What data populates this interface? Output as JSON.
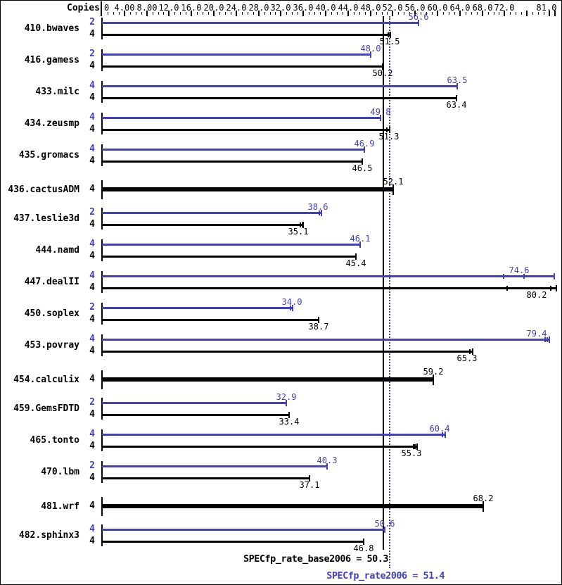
{
  "header": {
    "copies_label": "Copies"
  },
  "footer": {
    "base_score_text": "SPECfp_rate_base2006 = 50.3",
    "peak_score_text": "SPECfp_rate2006 = 51.4"
  },
  "colors": {
    "peak_blue": "#4040c0",
    "base_black": "#000000"
  },
  "chart_data": {
    "type": "bar",
    "orientation": "horizontal",
    "xlim": [
      0,
      81
    ],
    "grid": false,
    "axis_minor_step": 1,
    "axis_major_step": 4,
    "axis_labels": [
      {
        "value": 0,
        "text": "0"
      },
      {
        "value": 4,
        "text": "4.00"
      },
      {
        "value": 8,
        "text": "8.00"
      },
      {
        "value": 12,
        "text": "12.0"
      },
      {
        "value": 16,
        "text": "16.0"
      },
      {
        "value": 20,
        "text": "20.0"
      },
      {
        "value": 24,
        "text": "24.0"
      },
      {
        "value": 28,
        "text": "28.0"
      },
      {
        "value": 32,
        "text": "32.0"
      },
      {
        "value": 36,
        "text": "36.0"
      },
      {
        "value": 40,
        "text": "40.0"
      },
      {
        "value": 44,
        "text": "44.0"
      },
      {
        "value": 48,
        "text": "48.0"
      },
      {
        "value": 52,
        "text": "52.0"
      },
      {
        "value": 56,
        "text": "56.0"
      },
      {
        "value": 60,
        "text": "60.0"
      },
      {
        "value": 64,
        "text": "64.0"
      },
      {
        "value": 68,
        "text": "68.0"
      },
      {
        "value": 72,
        "text": "72.0"
      },
      {
        "value": 81,
        "text": "81.0"
      }
    ],
    "reference_lines": [
      {
        "name": "base_score",
        "value": 50.3,
        "style": "solid",
        "color": "#000000"
      },
      {
        "name": "peak_score",
        "value": 51.4,
        "style": "dotted",
        "color": "#4040c0"
      }
    ],
    "benchmarks": [
      {
        "name": "410.bwaves",
        "bars": [
          {
            "kind": "peak",
            "copies": 2,
            "value": 56.6
          },
          {
            "kind": "base",
            "copies": 4,
            "value": 51.5,
            "run_marks": [
              51.2
            ],
            "bar_end": 51.6
          }
        ]
      },
      {
        "name": "416.gamess",
        "bars": [
          {
            "kind": "peak",
            "copies": 2,
            "value": 48.0,
            "value_text": "48.0"
          },
          {
            "kind": "base",
            "copies": 4,
            "value": 50.2
          }
        ]
      },
      {
        "name": "433.milc",
        "bars": [
          {
            "kind": "peak",
            "copies": 4,
            "value": 63.5
          },
          {
            "kind": "base",
            "copies": 4,
            "value": 63.4
          }
        ]
      },
      {
        "name": "434.zeusmp",
        "bars": [
          {
            "kind": "peak",
            "copies": 4,
            "value": 49.8
          },
          {
            "kind": "base",
            "copies": 4,
            "value": 51.3,
            "run_marks": [
              51.0
            ],
            "bar_end": 51.4
          }
        ]
      },
      {
        "name": "435.gromacs",
        "bars": [
          {
            "kind": "peak",
            "copies": 4,
            "value": 46.9
          },
          {
            "kind": "base",
            "copies": 4,
            "value": 46.5
          }
        ]
      },
      {
        "name": "436.cactusADM",
        "bars": [
          {
            "kind": "base",
            "copies": 4,
            "value": 52.1,
            "thick": true
          }
        ]
      },
      {
        "name": "437.leslie3d",
        "bars": [
          {
            "kind": "peak",
            "copies": 2,
            "value": 38.6,
            "run_marks": [
              38.9
            ],
            "bar_end": 39.2
          },
          {
            "kind": "base",
            "copies": 4,
            "value": 35.1,
            "run_marks": [
              35.5,
              35.8
            ],
            "bar_end": 36.0
          }
        ]
      },
      {
        "name": "444.namd",
        "bars": [
          {
            "kind": "peak",
            "copies": 4,
            "value": 46.1
          },
          {
            "kind": "base",
            "copies": 4,
            "value": 45.4
          }
        ]
      },
      {
        "name": "447.dealII",
        "bars": [
          {
            "kind": "peak",
            "copies": 4,
            "value": 74.6,
            "run_marks": [
              71.8,
              75.5
            ],
            "bar_end": 80.9
          },
          {
            "kind": "base",
            "copies": 4,
            "value": 80.2,
            "run_marks": [
              72.4,
              80.2
            ],
            "bar_end": 81.3
          }
        ]
      },
      {
        "name": "450.soplex",
        "bars": [
          {
            "kind": "peak",
            "copies": 2,
            "value": 34.0,
            "value_text": "34.0",
            "run_marks": [
              33.7
            ],
            "bar_end": 34.1
          },
          {
            "kind": "base",
            "copies": 4,
            "value": 38.7
          }
        ]
      },
      {
        "name": "453.povray",
        "bars": [
          {
            "kind": "peak",
            "copies": 4,
            "value": 79.4,
            "run_marks": [
              79.3,
              79.65
            ],
            "bar_end": 80.0
          },
          {
            "kind": "base",
            "copies": 4,
            "value": 65.3,
            "run_marks": [
              65.8
            ],
            "bar_end": 66.3
          }
        ]
      },
      {
        "name": "454.calculix",
        "bars": [
          {
            "kind": "base",
            "copies": 4,
            "value": 59.2,
            "thick": true
          }
        ]
      },
      {
        "name": "459.GemsFDTD",
        "bars": [
          {
            "kind": "peak",
            "copies": 2,
            "value": 32.9
          },
          {
            "kind": "base",
            "copies": 4,
            "value": 33.4
          }
        ]
      },
      {
        "name": "465.tonto",
        "bars": [
          {
            "kind": "peak",
            "copies": 4,
            "value": 60.4,
            "run_marks": [
              60.9
            ],
            "bar_end": 61.4
          },
          {
            "kind": "base",
            "copies": 4,
            "value": 55.3,
            "run_marks": [
              55.7,
              56.0
            ],
            "bar_end": 56.3
          }
        ]
      },
      {
        "name": "470.lbm",
        "bars": [
          {
            "kind": "peak",
            "copies": 2,
            "value": 40.3
          },
          {
            "kind": "base",
            "copies": 4,
            "value": 37.1
          }
        ]
      },
      {
        "name": "481.wrf",
        "bars": [
          {
            "kind": "base",
            "copies": 4,
            "value": 68.2,
            "thick": true
          }
        ]
      },
      {
        "name": "482.sphinx3",
        "bars": [
          {
            "kind": "peak",
            "copies": 4,
            "value": 50.6
          },
          {
            "kind": "base",
            "copies": 4,
            "value": 46.8
          }
        ]
      }
    ]
  }
}
